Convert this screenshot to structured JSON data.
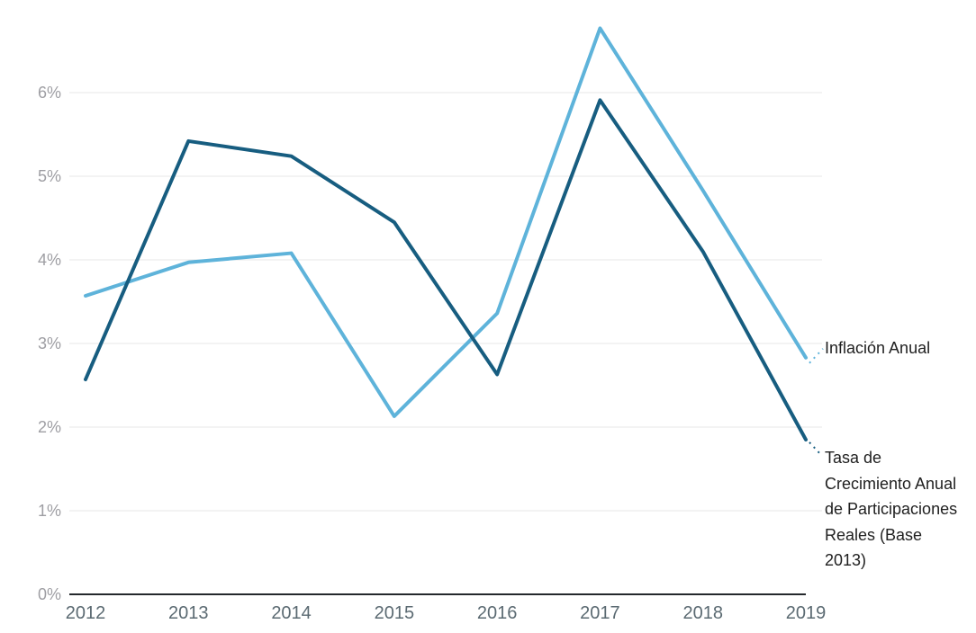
{
  "chart_data": {
    "type": "line",
    "title": "",
    "xlabel": "",
    "ylabel": "",
    "x": [
      "2012",
      "2013",
      "2014",
      "2015",
      "2016",
      "2017",
      "2018",
      "2019"
    ],
    "series": [
      {
        "name": "Inflación Anual",
        "color": "#5eb3da",
        "values": [
          3.57,
          3.97,
          4.08,
          2.13,
          3.36,
          6.77,
          4.83,
          2.83
        ]
      },
      {
        "name": "Tasa de Crecimiento Anual de Participaciones Reales (Base 2013)",
        "color": "#175d80",
        "values": [
          2.57,
          5.42,
          5.24,
          4.45,
          2.63,
          5.91,
          4.1,
          1.85
        ]
      }
    ],
    "yticks": [
      "0%",
      "1%",
      "2%",
      "3%",
      "4%",
      "5%",
      "6%"
    ],
    "ylim": [
      0,
      7.1
    ],
    "grid": "horizontal",
    "legend_position": "right-annotations"
  },
  "colors": {
    "grid": "#e7e7e7",
    "axis": "#24282c",
    "ytick_label": "#9e9ea3",
    "xtick_label": "#5b6a72",
    "annotation_text": "#212121",
    "background": "#ffffff"
  }
}
